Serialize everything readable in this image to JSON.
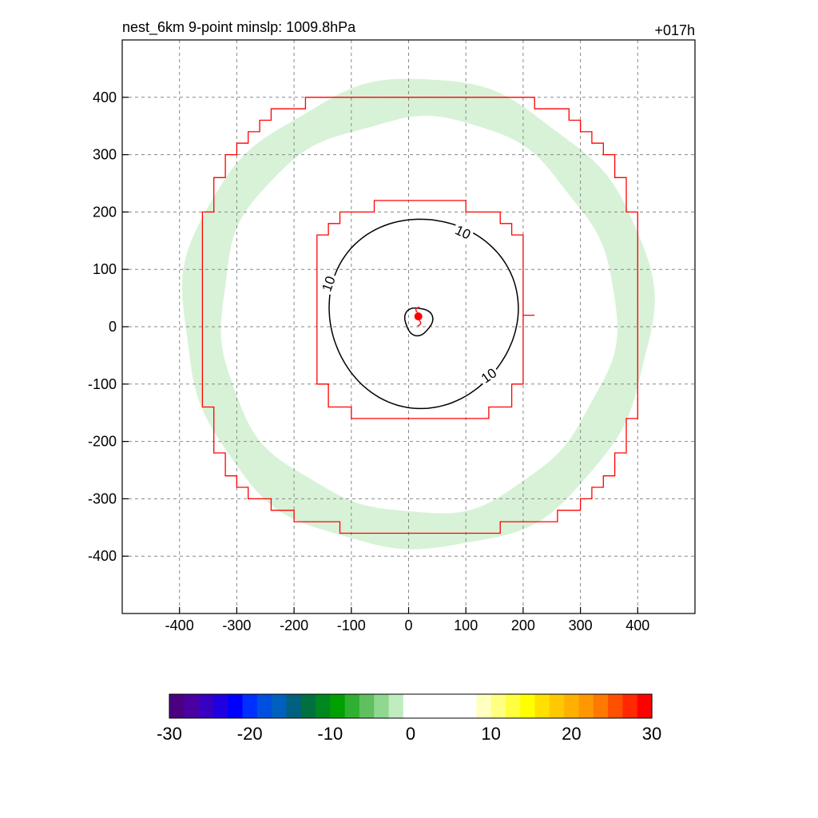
{
  "header": {
    "title": "nest_6km  9-point minslp: 1009.8hPa",
    "forecast_hour": "+017h"
  },
  "chart_data": {
    "type": "contour",
    "xlim": [
      -500,
      500
    ],
    "ylim": [
      -500,
      500
    ],
    "x_ticks": [
      "-400",
      "-300",
      "-200",
      "-100",
      "0",
      "100",
      "200",
      "300",
      "400"
    ],
    "y_ticks": [
      "400",
      "300",
      "200",
      "100",
      "0",
      "-100",
      "-200",
      "-300",
      "-400"
    ],
    "grid": true,
    "storm_center": [
      17,
      18
    ],
    "contour_label": "10",
    "contour_level": 10,
    "green_band": {
      "inner_radius": 345,
      "outer_radius": 410,
      "center": [
        15,
        20
      ]
    },
    "red_outlines": [
      {
        "name": "inner",
        "half_width": 190,
        "center": [
          20,
          25
        ]
      },
      {
        "name": "outer",
        "half_width": 380,
        "center": [
          20,
          25
        ]
      }
    ],
    "colorbar": {
      "ticks": [
        "-30",
        "-20",
        "-10",
        "0",
        "10",
        "20",
        "30"
      ],
      "range": [
        -30,
        30
      ],
      "colors": [
        "#4b0082",
        "#4a00a0",
        "#3800c0",
        "#2000e0",
        "#0000ff",
        "#0030ff",
        "#0050e0",
        "#0060c0",
        "#006080",
        "#007040",
        "#008820",
        "#00a000",
        "#30b030",
        "#60c060",
        "#90d890",
        "#c0ecc0",
        "#ffffff",
        "#ffffff",
        "#ffffff",
        "#ffffff",
        "#ffffff",
        "#ffffc0",
        "#ffff80",
        "#ffff40",
        "#ffff00",
        "#ffe000",
        "#ffc800",
        "#ffb000",
        "#ff9800",
        "#ff7800",
        "#ff5000",
        "#ff2800",
        "#ff0000"
      ]
    }
  }
}
